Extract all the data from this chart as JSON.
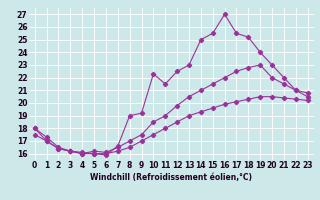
{
  "xlabel": "Windchill (Refroidissement éolien,°C)",
  "bg_color": "#cce8e8",
  "line_color": "#993399",
  "grid_color": "#ffffff",
  "xlim": [
    -0.5,
    23.5
  ],
  "ylim": [
    15.5,
    27.5
  ],
  "yticks": [
    16,
    17,
    18,
    19,
    20,
    21,
    22,
    23,
    24,
    25,
    26,
    27
  ],
  "xticks": [
    0,
    1,
    2,
    3,
    4,
    5,
    6,
    7,
    8,
    9,
    10,
    11,
    12,
    13,
    14,
    15,
    16,
    17,
    18,
    19,
    20,
    21,
    22,
    23
  ],
  "line1_x": [
    0,
    1,
    2,
    3,
    4,
    5,
    6,
    7,
    8,
    9,
    10,
    11,
    12,
    13,
    14,
    15,
    16,
    17,
    18,
    19,
    20,
    21,
    22,
    23
  ],
  "line1_y": [
    18,
    17,
    16.4,
    16.2,
    16.0,
    16.0,
    15.9,
    16.6,
    19.0,
    19.2,
    22.3,
    21.5,
    22.5,
    23.0,
    25.0,
    25.5,
    27.0,
    25.5,
    25.2,
    24.0,
    23.0,
    22.0,
    21.0,
    20.5
  ],
  "line2_x": [
    0,
    1,
    2,
    3,
    4,
    5,
    6,
    7,
    8,
    9,
    10,
    11,
    12,
    13,
    14,
    15,
    16,
    17,
    18,
    19,
    20,
    21,
    22,
    23
  ],
  "line2_y": [
    18.0,
    17.3,
    16.5,
    16.2,
    16.0,
    16.2,
    16.1,
    16.5,
    17.0,
    17.5,
    18.5,
    19.0,
    19.8,
    20.5,
    21.0,
    21.5,
    22.0,
    22.5,
    22.8,
    23.0,
    22.0,
    21.5,
    21.0,
    20.8
  ],
  "line3_x": [
    0,
    1,
    2,
    3,
    4,
    5,
    6,
    7,
    8,
    9,
    10,
    11,
    12,
    13,
    14,
    15,
    16,
    17,
    18,
    19,
    20,
    21,
    22,
    23
  ],
  "line3_y": [
    17.5,
    17.0,
    16.4,
    16.2,
    16.1,
    16.0,
    16.0,
    16.2,
    16.5,
    17.0,
    17.5,
    18.0,
    18.5,
    19.0,
    19.3,
    19.6,
    19.9,
    20.1,
    20.3,
    20.5,
    20.5,
    20.4,
    20.3,
    20.2
  ],
  "tick_fontsize": 5.5,
  "xlabel_fontsize": 5.5
}
